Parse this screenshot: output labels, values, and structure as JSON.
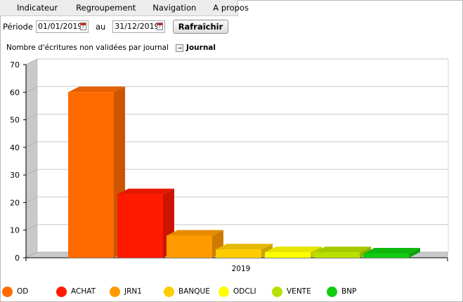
{
  "menu": [
    "Indicateur",
    "Regroupement",
    "Navigation",
    "A propos"
  ],
  "filter": {
    "period_label": "Période",
    "from_value": "01/01/2019",
    "to_label": "au",
    "to_value": "31/12/2019",
    "refresh_label": "Rafraîchir"
  },
  "chart_header": {
    "title": "Nombre d'écritures non validées par journal",
    "grouping_label": "Journal"
  },
  "chart_data": {
    "type": "bar",
    "categories": [
      "2019"
    ],
    "series": [
      {
        "name": "OD",
        "values": [
          59
        ],
        "color": "#ff6a00"
      },
      {
        "name": "ACHAT",
        "values": [
          22
        ],
        "color": "#ff1a00"
      },
      {
        "name": "JRN1",
        "values": [
          7
        ],
        "color": "#ff9a00"
      },
      {
        "name": "BANQUE",
        "values": [
          2
        ],
        "color": "#ffcc00"
      },
      {
        "name": "ODCLI",
        "values": [
          1
        ],
        "color": "#ffff00"
      },
      {
        "name": "VENTE",
        "values": [
          1
        ],
        "color": "#b8e000"
      },
      {
        "name": "BNP",
        "values": [
          0.5
        ],
        "color": "#11cc11"
      }
    ],
    "y_ticks": [
      0,
      10,
      20,
      30,
      40,
      50,
      60,
      70
    ],
    "ylim": [
      0,
      70
    ],
    "xlabel": "",
    "ylabel": "",
    "grid": true,
    "legend_position": "bottom"
  }
}
